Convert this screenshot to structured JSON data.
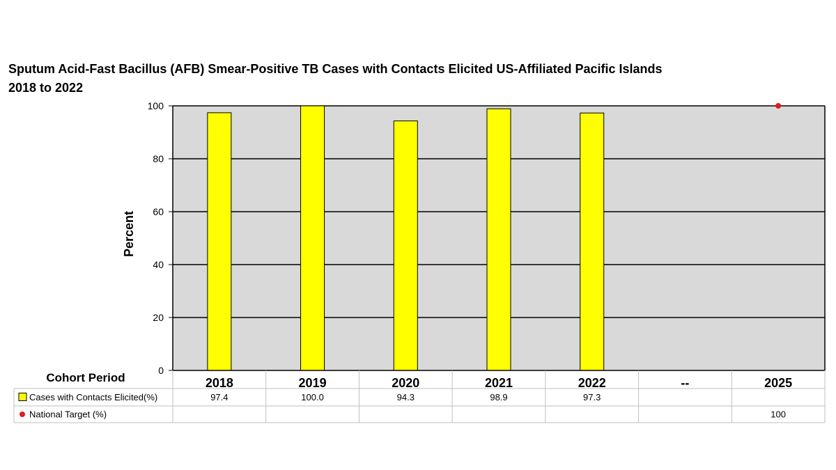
{
  "title_line1": "Sputum Acid-Fast Bacillus (AFB) Smear-Positive TB Cases with Contacts Elicited US-Affiliated Pacific Islands",
  "title_line2": "2018 to 2022",
  "chart_data": {
    "type": "bar",
    "title": "Sputum Acid-Fast Bacillus (AFB) Smear-Positive TB Cases with Contacts Elicited US-Affiliated Pacific Islands 2018 to 2022",
    "ylabel": "Percent",
    "xlabel": "Cohort Period",
    "ylim": [
      0,
      100
    ],
    "yticks": [
      0,
      20,
      40,
      60,
      80,
      100
    ],
    "categories": [
      "2018",
      "2019",
      "2020",
      "2021",
      "2022",
      "--",
      "2025"
    ],
    "series": [
      {
        "name": "Cases with Contacts Elicited(%)",
        "type": "bar",
        "color": "#ffff00",
        "values": [
          97.4,
          100.0,
          94.3,
          98.9,
          97.3,
          null,
          null
        ],
        "labels": [
          "97.4",
          "100.0",
          "94.3",
          "98.9",
          "97.3",
          "",
          ""
        ]
      },
      {
        "name": "National Target (%)",
        "type": "scatter",
        "color": "#e31a1c",
        "values": [
          null,
          null,
          null,
          null,
          null,
          null,
          100
        ],
        "labels": [
          "",
          "",
          "",
          "",
          "",
          "",
          "100"
        ]
      }
    ],
    "grid": true,
    "legend": "data-table",
    "plot_background": "#d9d9d9"
  }
}
